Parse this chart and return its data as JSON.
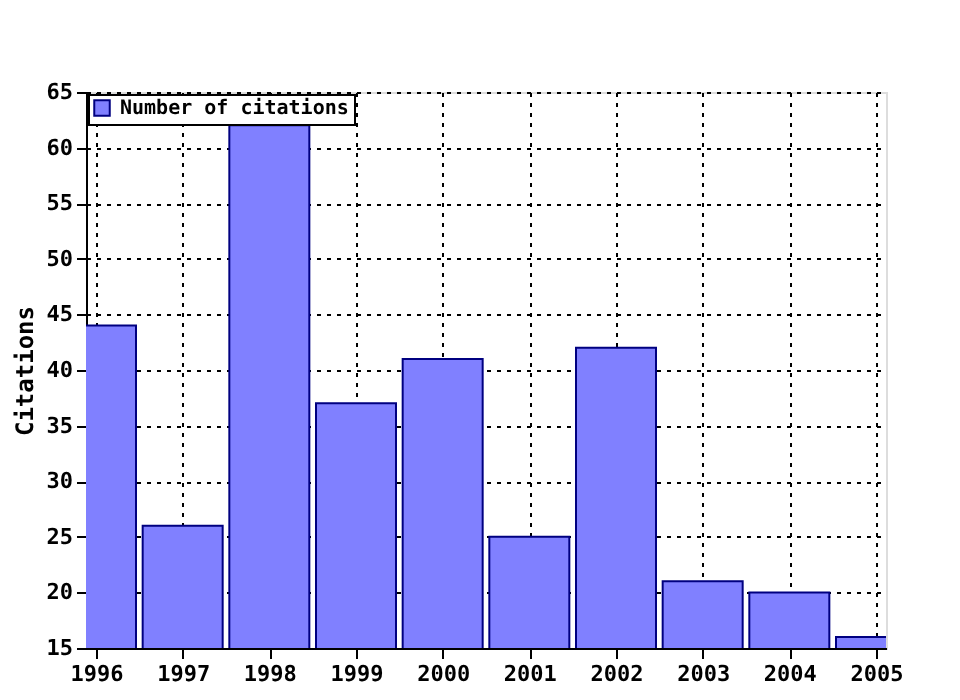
{
  "chart_data": {
    "type": "bar",
    "ylabel": "Citations",
    "x": [
      1996,
      1997,
      1998,
      1999,
      2000,
      2001,
      2002,
      2003,
      2004,
      2005
    ],
    "series": [
      {
        "name": "Number of citations",
        "color": "#8080ff",
        "values": [
          44,
          26,
          62,
          37,
          41,
          25,
          42,
          21,
          20,
          16
        ]
      }
    ],
    "xlim": [
      1996,
      2005
    ],
    "xticks": [
      1996,
      1997,
      1998,
      1999,
      2000,
      2001,
      2002,
      2003,
      2004,
      2005
    ],
    "ylim": [
      15,
      65
    ],
    "yticks": [
      15,
      20,
      25,
      30,
      35,
      40,
      45,
      50,
      55,
      60,
      65
    ],
    "grid": true,
    "legend": "top left"
  }
}
